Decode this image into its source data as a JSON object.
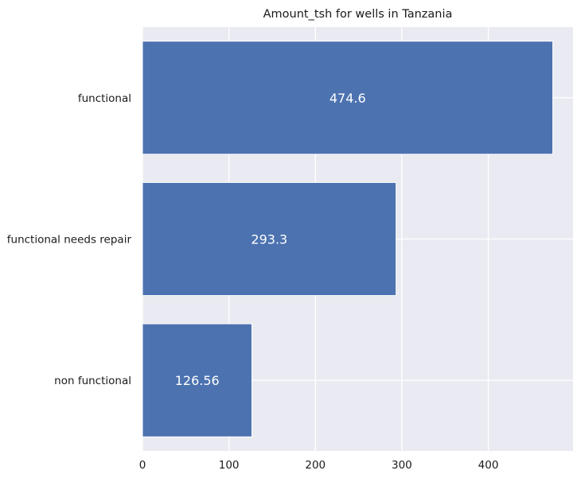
{
  "chart_data": {
    "type": "bar",
    "orientation": "horizontal",
    "title": "Amount_tsh for wells in Tanzania",
    "xlabel": "",
    "ylabel": "",
    "categories": [
      "functional",
      "functional needs repair",
      "non functional"
    ],
    "values": [
      474.6,
      293.3,
      126.56
    ],
    "value_labels": [
      "474.6",
      "293.3",
      "126.56"
    ],
    "xlim": [
      0,
      498
    ],
    "xticks": [
      0,
      100,
      200,
      300,
      400
    ],
    "xtick_labels": [
      "0",
      "100",
      "200",
      "300",
      "400"
    ],
    "grid": true,
    "bar_color": "#4c72b0",
    "plot_background": "#eaeaf2",
    "grid_color": "#ffffff"
  }
}
